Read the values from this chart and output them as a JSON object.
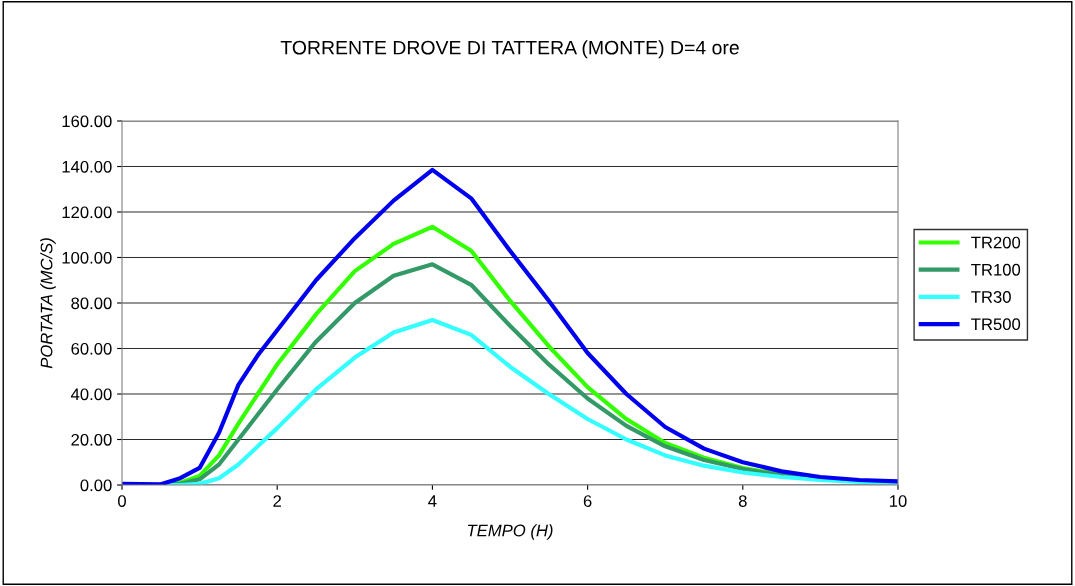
{
  "chart_data": {
    "type": "line",
    "title": "TORRENTE DROVE DI TATTERA (MONTE) D=4 ore",
    "xlabel": "TEMPO (H)",
    "ylabel": "PORTATA (MC/S)",
    "x": [
      0,
      0.5,
      0.75,
      1,
      1.25,
      1.5,
      1.75,
      2,
      2.5,
      3,
      3.5,
      4,
      4.5,
      5,
      5.5,
      6,
      6.5,
      7,
      7.5,
      8,
      8.5,
      9,
      9.5,
      10
    ],
    "series": [
      {
        "name": "TR200",
        "color": "#33ff00",
        "values": [
          0,
          0,
          1,
          4,
          13,
          27,
          40,
          53,
          75,
          94,
          106,
          113.5,
          103,
          81,
          61,
          43,
          29,
          18.5,
          12,
          7.5,
          4.5,
          null,
          null,
          null
        ]
      },
      {
        "name": "TR100",
        "color": "#339966",
        "values": [
          0,
          0,
          0.5,
          2.5,
          9,
          20,
          31,
          42,
          63,
          80,
          92,
          97,
          88,
          70,
          53,
          38,
          26,
          17,
          11,
          7,
          4.2,
          2.6,
          1.7,
          1.1
        ]
      },
      {
        "name": "TR30",
        "color": "#33ffff",
        "values": [
          0,
          0,
          0,
          0.5,
          3,
          9,
          17,
          25,
          42,
          56,
          67,
          72.5,
          66,
          52,
          40,
          29,
          20,
          13,
          8.5,
          5.5,
          3.5,
          2.2,
          1.4,
          1
        ]
      },
      {
        "name": "TR500",
        "color": "#0000ee",
        "values": [
          0.5,
          0.3,
          3,
          7.5,
          23,
          44,
          57,
          68,
          90,
          108.5,
          125,
          138.5,
          126,
          103,
          81,
          58,
          40,
          25.5,
          16,
          10,
          6,
          3.5,
          2.2,
          1.6
        ]
      }
    ],
    "xlim": [
      0,
      10
    ],
    "xticks": [
      0,
      2,
      4,
      6,
      8,
      10
    ],
    "ylim": [
      0,
      160
    ],
    "yticks": [
      {
        "value": 0,
        "label": "0.00"
      },
      {
        "value": 20,
        "label": "20.00"
      },
      {
        "value": 40,
        "label": "40.00"
      },
      {
        "value": 60,
        "label": "60.00"
      },
      {
        "value": 80,
        "label": "80.00"
      },
      {
        "value": 100,
        "label": "100.00"
      },
      {
        "value": 120,
        "label": "120.00"
      },
      {
        "value": 140,
        "label": "140.00"
      },
      {
        "value": 160,
        "label": "160.00"
      }
    ],
    "grid": "y",
    "legend": "right",
    "marker": "none",
    "line_style": "solid"
  }
}
